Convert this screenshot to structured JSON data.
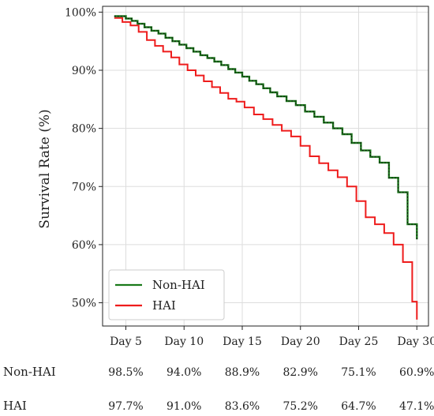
{
  "chart_data": {
    "type": "line",
    "ylabel": "Survival Rate (%)",
    "xlabel": "",
    "ylim": [
      46,
      101
    ],
    "xlim": [
      3,
      31
    ],
    "grid": true,
    "legend_position": "bottom-left",
    "y_ticks": [
      {
        "value": 50,
        "label": "50%"
      },
      {
        "value": 60,
        "label": "60%"
      },
      {
        "value": 70,
        "label": "70%"
      },
      {
        "value": 80,
        "label": "80%"
      },
      {
        "value": 90,
        "label": "90%"
      },
      {
        "value": 100,
        "label": "100%"
      }
    ],
    "x_ticks": [
      {
        "value": 5,
        "label": "Day 5"
      },
      {
        "value": 10,
        "label": "Day 10"
      },
      {
        "value": 15,
        "label": "Day 15"
      },
      {
        "value": 20,
        "label": "Day 20"
      },
      {
        "value": 25,
        "label": "Day 25"
      },
      {
        "value": 30,
        "label": "Day 30"
      }
    ],
    "series": [
      {
        "name": "Non-HAI",
        "color": "#1a7a1a",
        "x": [
          4,
          5,
          5.5,
          6,
          6.6,
          7.2,
          7.8,
          8.4,
          9,
          9.6,
          10.2,
          10.8,
          11.4,
          12,
          12.6,
          13.2,
          13.8,
          14.4,
          15,
          15.6,
          16.2,
          16.8,
          17.4,
          18,
          18.8,
          19.6,
          20.4,
          21.2,
          22,
          22.8,
          23.6,
          24.4,
          25.2,
          26,
          26.8,
          27.6,
          28.4,
          29.2,
          30
        ],
        "y": [
          99.3,
          98.9,
          98.5,
          98.0,
          97.4,
          96.8,
          96.3,
          95.6,
          95.0,
          94.4,
          93.8,
          93.2,
          92.6,
          92.1,
          91.5,
          90.9,
          90.2,
          89.6,
          88.9,
          88.2,
          87.6,
          86.9,
          86.2,
          85.5,
          84.7,
          84.0,
          82.9,
          82.0,
          81.0,
          80.0,
          79.0,
          77.5,
          76.2,
          75.1,
          74.1,
          71.5,
          69.0,
          63.5,
          60.9
        ]
      },
      {
        "name": "HAI",
        "color": "#ee1c1c",
        "x": [
          4,
          4.7,
          5.4,
          6.1,
          6.8,
          7.5,
          8.2,
          8.9,
          9.6,
          10.3,
          11,
          11.7,
          12.4,
          13.1,
          13.8,
          14.5,
          15.2,
          16,
          16.8,
          17.6,
          18.4,
          19.2,
          20,
          20.8,
          21.6,
          22.4,
          23.2,
          24,
          24.8,
          25.6,
          26.4,
          27.2,
          28,
          28.8,
          29.6,
          30
        ],
        "y": [
          99.0,
          98.3,
          97.7,
          96.6,
          95.2,
          94.2,
          93.2,
          92.2,
          91.0,
          90.0,
          89.1,
          88.1,
          87.1,
          86.1,
          85.1,
          84.6,
          83.6,
          82.4,
          81.6,
          80.6,
          79.6,
          78.6,
          77.0,
          75.2,
          74.0,
          72.8,
          71.6,
          70.0,
          67.5,
          64.7,
          63.5,
          62.0,
          60.0,
          57.0,
          50.2,
          47.1
        ]
      }
    ]
  },
  "table": {
    "rows": [
      {
        "label": "Non-HAI",
        "values": [
          "98.5%",
          "94.0%",
          "88.9%",
          "82.9%",
          "75.1%",
          "60.9%"
        ]
      },
      {
        "label": "HAI",
        "values": [
          "97.7%",
          "91.0%",
          "83.6%",
          "75.2%",
          "64.7%",
          "47.1%"
        ]
      }
    ]
  }
}
